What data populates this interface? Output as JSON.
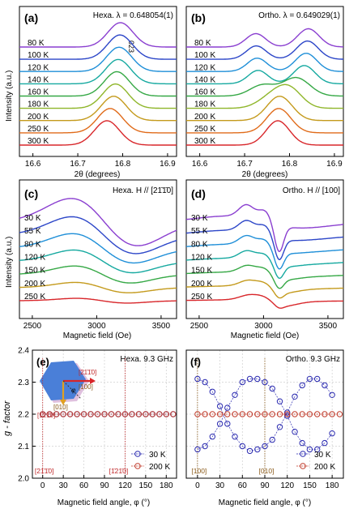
{
  "chart_data": [
    {
      "panel": "(a)",
      "type": "line",
      "note_text": "Hexa. λ = 0.648054(1)",
      "peak_label": "023",
      "xlabel": "2θ (degrees)",
      "ylabel": "Intensity (a.u.)",
      "xlim": [
        16.57,
        16.92
      ],
      "xticks": [
        "16.6",
        "16.7",
        "16.8",
        "16.9"
      ],
      "grid": false,
      "series": [
        {
          "name": "80 K",
          "color": "#8a3fd0",
          "peaks": [
            {
              "center": 16.795,
              "height": 1.0,
              "width": 0.028
            }
          ]
        },
        {
          "name": "100 K",
          "color": "#2c46c8",
          "peaks": [
            {
              "center": 16.794,
              "height": 1.0,
              "width": 0.028
            }
          ]
        },
        {
          "name": "120 K",
          "color": "#1f8fd8",
          "peaks": [
            {
              "center": 16.792,
              "height": 1.0,
              "width": 0.028
            }
          ]
        },
        {
          "name": "140 K",
          "color": "#16a9a0",
          "peaks": [
            {
              "center": 16.79,
              "height": 1.0,
              "width": 0.028
            }
          ]
        },
        {
          "name": "160 K",
          "color": "#35a845",
          "peaks": [
            {
              "center": 16.787,
              "height": 1.0,
              "width": 0.028
            }
          ]
        },
        {
          "name": "180 K",
          "color": "#8fb62a",
          "peaks": [
            {
              "center": 16.784,
              "height": 1.0,
              "width": 0.028
            }
          ]
        },
        {
          "name": "200 K",
          "color": "#c49a1c",
          "peaks": [
            {
              "center": 16.78,
              "height": 1.0,
              "width": 0.028
            }
          ]
        },
        {
          "name": "250 K",
          "color": "#e06b1a",
          "peaks": [
            {
              "center": 16.772,
              "height": 1.0,
              "width": 0.028
            }
          ]
        },
        {
          "name": "300 K",
          "color": "#d8262a",
          "peaks": [
            {
              "center": 16.765,
              "height": 1.0,
              "width": 0.028
            }
          ]
        }
      ]
    },
    {
      "panel": "(b)",
      "type": "line",
      "note_text": "Ortho. λ = 0.649029(1)",
      "xlabel": "2θ (degrees)",
      "xlim": [
        16.57,
        16.92
      ],
      "xticks": [
        "16.6",
        "16.7",
        "16.8",
        "16.9"
      ],
      "grid": false,
      "series": [
        {
          "name": "80 K",
          "color": "#8a3fd0",
          "peaks": [
            {
              "center": 16.725,
              "height": 0.55,
              "width": 0.022
            },
            {
              "center": 16.842,
              "height": 0.75,
              "width": 0.024
            }
          ]
        },
        {
          "name": "100 K",
          "color": "#2c46c8",
          "peaks": [
            {
              "center": 16.726,
              "height": 0.55,
              "width": 0.022
            },
            {
              "center": 16.84,
              "height": 0.75,
              "width": 0.024
            }
          ]
        },
        {
          "name": "120 K",
          "color": "#1f8fd8",
          "peaks": [
            {
              "center": 16.728,
              "height": 0.55,
              "width": 0.022
            },
            {
              "center": 16.837,
              "height": 0.75,
              "width": 0.024
            }
          ]
        },
        {
          "name": "140 K",
          "color": "#16a9a0",
          "peaks": [
            {
              "center": 16.73,
              "height": 0.55,
              "width": 0.022
            },
            {
              "center": 16.833,
              "height": 0.75,
              "width": 0.024
            }
          ]
        },
        {
          "name": "160 K",
          "color": "#35a845",
          "peaks": [
            {
              "center": 16.74,
              "height": 0.45,
              "width": 0.028
            },
            {
              "center": 16.815,
              "height": 0.75,
              "width": 0.03
            }
          ]
        },
        {
          "name": "180 K",
          "color": "#8fb62a",
          "peaks": [
            {
              "center": 16.76,
              "height": 0.45,
              "width": 0.03
            },
            {
              "center": 16.8,
              "height": 0.75,
              "width": 0.028
            }
          ]
        },
        {
          "name": "200 K",
          "color": "#c49a1c",
          "peaks": [
            {
              "center": 16.778,
              "height": 1.0,
              "width": 0.028
            }
          ]
        },
        {
          "name": "250 K",
          "color": "#e06b1a",
          "peaks": [
            {
              "center": 16.776,
              "height": 1.0,
              "width": 0.027
            }
          ]
        },
        {
          "name": "300 K",
          "color": "#d8262a",
          "peaks": [
            {
              "center": 16.774,
              "height": 1.0,
              "width": 0.026
            }
          ]
        }
      ]
    },
    {
      "panel": "(c)",
      "type": "line",
      "note_text": "Hexa. H // [21̄1̄0]",
      "xlabel": "Magnetic field (Oe)",
      "ylabel": "Intensity (a.u.)",
      "xlim": [
        2400,
        3620
      ],
      "xticks": [
        "2500",
        "3000",
        "3500"
      ],
      "grid": false,
      "series": [
        {
          "name": "30 K",
          "color": "#8a3fd0",
          "center": 3060,
          "width": 260,
          "amplitude": 1.0
        },
        {
          "name": "55 K",
          "color": "#2c46c8",
          "center": 3055,
          "width": 250,
          "amplitude": 0.78
        },
        {
          "name": "80 K",
          "color": "#1f8fd8",
          "center": 3050,
          "width": 240,
          "amplitude": 0.62
        },
        {
          "name": "120 K",
          "color": "#16a9a0",
          "center": 3050,
          "width": 230,
          "amplitude": 0.48
        },
        {
          "name": "150 K",
          "color": "#35a845",
          "center": 3045,
          "width": 220,
          "amplitude": 0.36
        },
        {
          "name": "200 K",
          "color": "#c49a1c",
          "center": 3040,
          "width": 210,
          "amplitude": 0.22
        },
        {
          "name": "250 K",
          "color": "#d8262a",
          "center": 3040,
          "width": 200,
          "amplitude": 0.1
        }
      ]
    },
    {
      "panel": "(d)",
      "type": "line",
      "note_text": "Ortho. H // [100]",
      "xlabel": "Magnetic field (Oe)",
      "xlim": [
        2400,
        3620
      ],
      "xticks": [
        "2500",
        "3000",
        "3500"
      ],
      "grid": false,
      "series": [
        {
          "name": "30 K",
          "color": "#8a3fd0",
          "amplitude": 1.0
        },
        {
          "name": "55 K",
          "color": "#2c46c8",
          "amplitude": 0.8
        },
        {
          "name": "80 K",
          "color": "#1f8fd8",
          "amplitude": 0.65
        },
        {
          "name": "120 K",
          "color": "#16a9a0",
          "amplitude": 0.5
        },
        {
          "name": "150 K",
          "color": "#35a845",
          "amplitude": 0.38
        },
        {
          "name": "200 K",
          "color": "#c49a1c",
          "amplitude": 0.24
        },
        {
          "name": "250 K",
          "color": "#d8262a",
          "amplitude": 0.12
        }
      ]
    },
    {
      "panel": "(e)",
      "type": "scatter",
      "note_text": "Hexa. 9.3 GHz",
      "xlabel": "Magnetic field angle, φ (°)",
      "ylabel": "g - factor",
      "xlim": [
        -15,
        195
      ],
      "ylim": [
        2.0,
        2.4
      ],
      "xticks": [
        "0",
        "30",
        "60",
        "90",
        "120",
        "150",
        "180"
      ],
      "yticks": [
        "2.0",
        "2.1",
        "2.2",
        "2.3",
        "2.4"
      ],
      "grid": true,
      "legend": "bottom-right",
      "direction_labels": [
        "[21̄1̄0]",
        "[1̄21̄0]"
      ],
      "inset_labels": [
        "[21̄1̄0]",
        "[100]",
        "[1̄21̄0]",
        "[010]",
        "φ"
      ],
      "series": [
        {
          "name": "30 K",
          "color": "#2a2ab0",
          "x": [
            0,
            10,
            20,
            30,
            40,
            50,
            60,
            70,
            80,
            90,
            100,
            110,
            120,
            130,
            140,
            150,
            160,
            170,
            180,
            190
          ],
          "y": [
            2.2,
            2.2,
            2.2,
            2.2,
            2.2,
            2.2,
            2.2,
            2.2,
            2.2,
            2.2,
            2.2,
            2.2,
            2.2,
            2.2,
            2.2,
            2.2,
            2.2,
            2.2,
            2.2,
            2.2
          ]
        },
        {
          "name": "200 K",
          "color": "#c03a2a",
          "x": [
            0,
            10,
            20,
            30,
            40,
            50,
            60,
            70,
            80,
            90,
            100,
            110,
            120,
            130,
            140,
            150,
            160,
            170,
            180,
            190
          ],
          "y": [
            2.2,
            2.2,
            2.2,
            2.2,
            2.2,
            2.2,
            2.2,
            2.2,
            2.2,
            2.2,
            2.2,
            2.2,
            2.2,
            2.2,
            2.2,
            2.2,
            2.2,
            2.2,
            2.2,
            2.2
          ]
        }
      ]
    },
    {
      "panel": "(f)",
      "type": "scatter",
      "note_text": "Ortho. 9.3 GHz",
      "xlabel": "Magnetic field angle, φ (°)",
      "xlim": [
        -15,
        195
      ],
      "ylim": [
        2.0,
        2.4
      ],
      "xticks": [
        "0",
        "30",
        "60",
        "90",
        "120",
        "150",
        "180"
      ],
      "grid": true,
      "legend": "bottom-right",
      "direction_labels": [
        "[100]",
        "[010]"
      ],
      "series": [
        {
          "name": "30 K (branch 1)",
          "color": "#2a2ab0",
          "x": [
            0,
            10,
            20,
            30,
            40,
            50,
            60,
            70,
            80,
            90,
            100,
            110,
            120,
            130,
            140,
            150,
            160,
            170,
            180
          ],
          "y": [
            2.31,
            2.3,
            2.27,
            2.225,
            2.17,
            2.13,
            2.1,
            2.085,
            2.09,
            2.1,
            2.12,
            2.16,
            2.205,
            2.255,
            2.29,
            2.31,
            2.31,
            2.29,
            2.26
          ]
        },
        {
          "name": "30 K (branch 2)",
          "color": "#2a2ab0",
          "x": [
            0,
            10,
            20,
            30,
            40,
            50,
            60,
            70,
            80,
            90,
            100,
            110,
            120,
            130,
            140,
            150,
            160,
            170,
            180
          ],
          "y": [
            2.09,
            2.1,
            2.13,
            2.17,
            2.22,
            2.26,
            2.3,
            2.31,
            2.31,
            2.3,
            2.28,
            2.24,
            2.195,
            2.145,
            2.11,
            2.09,
            2.09,
            2.11,
            2.14
          ]
        },
        {
          "name": "200 K",
          "color": "#c03a2a",
          "x": [
            0,
            10,
            20,
            30,
            40,
            50,
            60,
            70,
            80,
            90,
            100,
            110,
            120,
            130,
            140,
            150,
            160,
            170,
            180,
            190
          ],
          "y": [
            2.2,
            2.2,
            2.2,
            2.2,
            2.2,
            2.2,
            2.2,
            2.2,
            2.2,
            2.2,
            2.2,
            2.2,
            2.2,
            2.2,
            2.2,
            2.2,
            2.2,
            2.2,
            2.2,
            2.2
          ]
        }
      ],
      "legend_entries": [
        "30 K",
        "200 K"
      ]
    }
  ]
}
